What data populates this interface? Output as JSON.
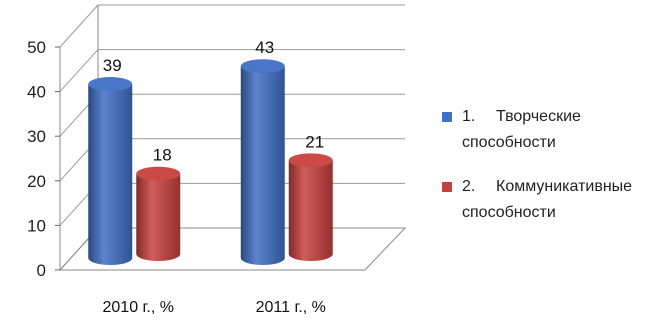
{
  "chart_data": {
    "type": "bar",
    "categories": [
      "2010 г., %",
      "2011 г., %"
    ],
    "series": [
      {
        "name": "Творческие способности",
        "legend_number": "1.",
        "values": [
          39,
          43
        ],
        "color": "#3f6fc6"
      },
      {
        "name": "Коммуникативные способности",
        "legend_number": "2.",
        "values": [
          18,
          21
        ],
        "color": "#c8403d"
      }
    ],
    "ylim": [
      0,
      50
    ],
    "yticks": [
      0,
      10,
      20,
      30,
      40,
      50
    ],
    "grid": true,
    "legend_position": "right",
    "three_d": true,
    "bar_shape": "cylinder",
    "title": "",
    "xlabel": "",
    "ylabel": ""
  },
  "legend": [
    {
      "number": "1.",
      "label": "Творческие",
      "label_cont": "способности"
    },
    {
      "number": "2.",
      "label": "Коммуникативные",
      "label_cont": "способности"
    }
  ]
}
